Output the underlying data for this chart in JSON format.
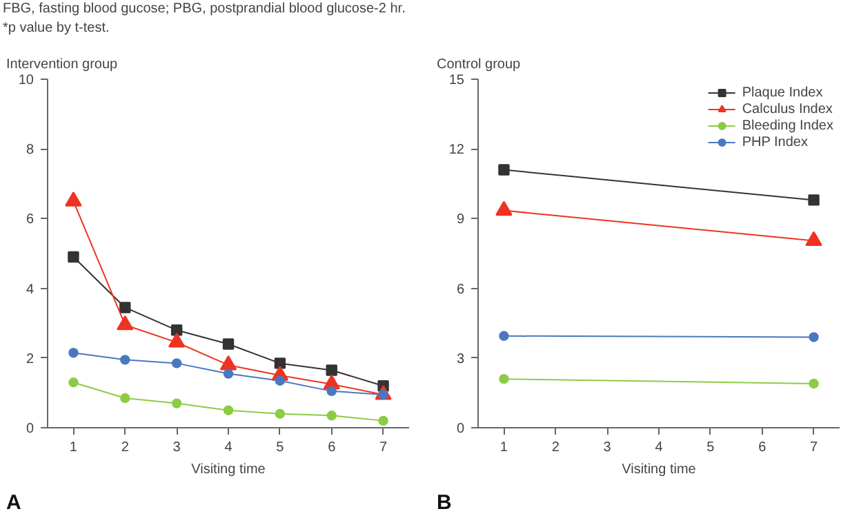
{
  "chart_data": [
    {
      "type": "line",
      "title": "Intervention group",
      "xlabel": "Visiting time",
      "x": [
        1,
        2,
        3,
        4,
        5,
        6,
        7
      ],
      "xlim": [
        0.5,
        7.5
      ],
      "xticks": [
        1,
        2,
        3,
        4,
        5,
        6,
        7
      ],
      "ylim": [
        0,
        10
      ],
      "yticks": [
        0,
        2,
        4,
        6,
        8,
        10
      ],
      "grid": false,
      "legend": false,
      "annotations": [
        "FBG, fasting blood gucose; PBG, postprandial blood glucose-2 hr.",
        "*p value by t-test.",
        "A"
      ],
      "series": [
        {
          "color": "#333333",
          "marker": "square",
          "values": [
            4.9,
            3.45,
            2.8,
            2.4,
            1.85,
            1.65,
            1.2
          ]
        },
        {
          "color": "#ee3322",
          "marker": "triangle",
          "values": [
            6.5,
            2.95,
            2.45,
            1.8,
            1.5,
            1.25,
            0.95
          ]
        },
        {
          "color": "#8ccc44",
          "marker": "circle",
          "values": [
            1.3,
            0.85,
            0.7,
            0.5,
            0.4,
            0.35,
            0.2
          ]
        },
        {
          "color": "#4a78c0",
          "marker": "circle",
          "values": [
            2.15,
            1.95,
            1.85,
            1.55,
            1.35,
            1.05,
            0.95
          ]
        }
      ]
    },
    {
      "type": "line",
      "title": "Control group",
      "xlabel": "Visiting time",
      "x": [
        1,
        7
      ],
      "xlim": [
        0.5,
        7.5
      ],
      "xticks": [
        1,
        2,
        3,
        4,
        5,
        6,
        7
      ],
      "ylim": [
        0,
        15
      ],
      "yticks": [
        0,
        3,
        6,
        9,
        12,
        15
      ],
      "grid": false,
      "legend": "top right",
      "annotations": [
        "B"
      ],
      "series": [
        {
          "name": "Plaque Index",
          "color": "#333333",
          "marker": "square",
          "values": [
            11.1,
            9.8
          ]
        },
        {
          "name": "Calculus Index",
          "color": "#ee3322",
          "marker": "triangle",
          "values": [
            9.35,
            8.05
          ]
        },
        {
          "name": "Bleeding Index",
          "color": "#8ccc44",
          "marker": "circle",
          "values": [
            2.1,
            1.9
          ]
        },
        {
          "name": "PHP Index",
          "color": "#4a78c0",
          "marker": "circle",
          "values": [
            3.95,
            3.9
          ]
        }
      ]
    }
  ]
}
